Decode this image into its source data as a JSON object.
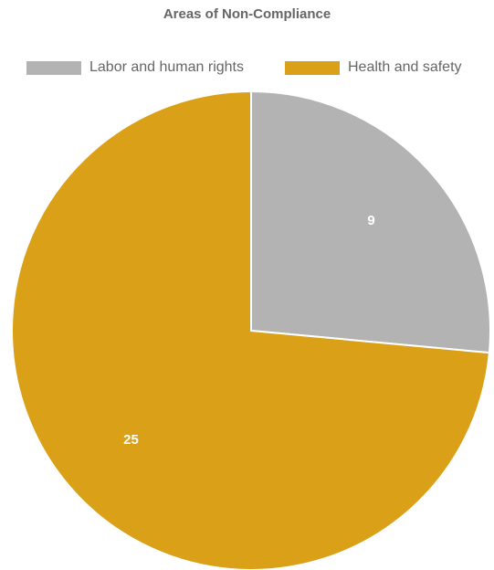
{
  "chart_data": {
    "type": "pie",
    "title": "Areas of Non-Compliance",
    "categories": [
      "Labor and human rights",
      "Health and safety"
    ],
    "values": [
      9,
      25
    ],
    "colors": [
      "#b3b3b3",
      "#daa017"
    ],
    "legend_position": "top",
    "start_angle": "12 o'clock",
    "direction": "clockwise"
  }
}
